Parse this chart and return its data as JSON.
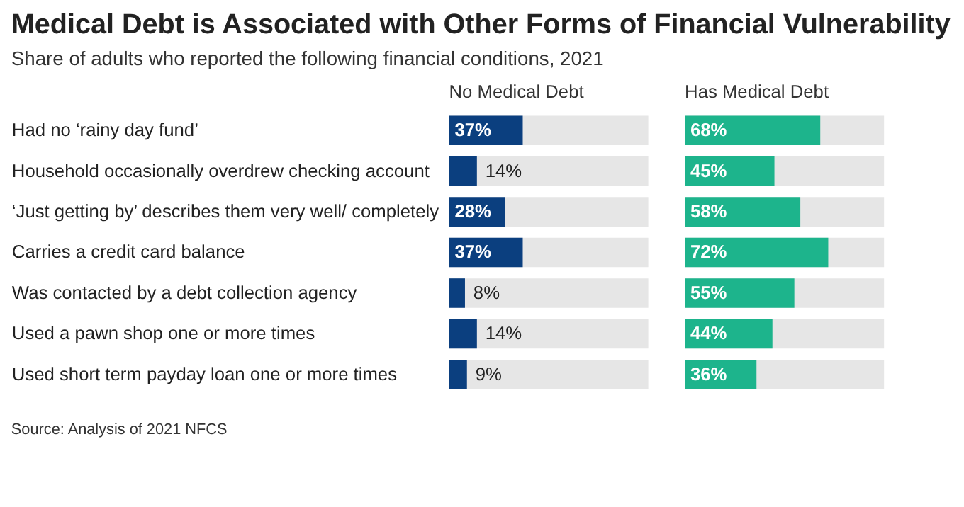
{
  "chart_data": [
    {
      "type": "bar",
      "orientation": "horizontal",
      "title": "Medical Debt is Associated with Other Forms of Financial Vulnerability",
      "subtitle": "Share of adults who reported the following financial conditions, 2021",
      "categories": [
        "Had no ‘rainy day fund’",
        "Household occasionally overdrew checking account",
        "‘Just getting by’ describes them very well/ completely",
        "Carries a credit card balance",
        "Was contacted by a debt collection agency",
        "Used a pawn shop one or more times",
        "Used short term payday loan one or more times"
      ],
      "series": [
        {
          "name": "No Medical Debt",
          "color": "#0b3f7f",
          "values": [
            37,
            14,
            28,
            37,
            8,
            14,
            9
          ],
          "value_labels": [
            "37%",
            "14%",
            "28%",
            "37%",
            "8%",
            "14%",
            "9%"
          ]
        }
      ],
      "xlim": [
        0,
        100
      ],
      "tick_labels": "y",
      "annotations": [
        "Source: Analysis of 2021 NFCS"
      ]
    },
    {
      "type": "bar",
      "orientation": "horizontal",
      "categories": [
        null,
        null,
        null,
        null,
        null,
        null,
        null
      ],
      "series": [
        {
          "name": "Has Medical Debt",
          "color": "#1db48c",
          "values": [
            68,
            45,
            58,
            72,
            55,
            44,
            36
          ],
          "value_labels": [
            "68%",
            "45%",
            "58%",
            "72%",
            "55%",
            "44%",
            "36%"
          ]
        }
      ],
      "xlim": [
        0,
        100
      ],
      "tick_labels": false
    }
  ]
}
